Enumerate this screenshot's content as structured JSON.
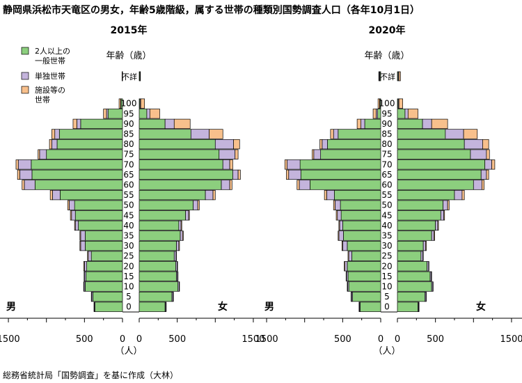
{
  "title": "静岡県浜松市天竜区の男女，年齢5歳階級，属する世帯の種類別国勢調査人口（各年10月1日）",
  "source": "総務省統計局「国勢調査」を基に作成（大林）",
  "legend": [
    {
      "label": "2人以上の\n一般世帯",
      "color": "#8ccf7e"
    },
    {
      "label": "単独世帯",
      "color": "#c4b4dc"
    },
    {
      "label": "施設等の\n世帯",
      "color": "#f8c08c"
    }
  ],
  "chart_data": {
    "type": "bar",
    "layout": "population-pyramid",
    "stacking": "stacked-horizontal",
    "age_axis_label": "年齢（歳）",
    "unit_label": "（人）",
    "male_label": "男",
    "female_label": "女",
    "unknown_label": "不詳",
    "categories": [
      "0",
      "5",
      "10",
      "15",
      "20",
      "25",
      "30",
      "35",
      "40",
      "45",
      "50",
      "55",
      "60",
      "65",
      "70",
      "75",
      "80",
      "85",
      "90",
      "95",
      "100"
    ],
    "age_ticks": [
      "0",
      "5",
      "10",
      "15",
      "20",
      "25",
      "30",
      "35",
      "40",
      "45",
      "50",
      "55",
      "60",
      "65",
      "70",
      "75",
      "80",
      "85",
      "90",
      "95",
      "100"
    ],
    "xlim": [
      0,
      1500
    ],
    "x_ticks": [
      0,
      500,
      1500
    ],
    "series_names": [
      "2人以上の一般世帯",
      "単独世帯",
      "施設等の世帯"
    ],
    "panels": [
      {
        "year_label": "2015年",
        "unknown": {
          "male": [
            5,
            0,
            0
          ],
          "female": [
            10,
            0,
            0
          ]
        },
        "male": {
          "two_plus": [
            360,
            390,
            490,
            480,
            470,
            410,
            490,
            490,
            580,
            620,
            630,
            820,
            1150,
            1190,
            1200,
            1000,
            860,
            830,
            550,
            190,
            20
          ],
          "single": [
            10,
            15,
            15,
            20,
            30,
            40,
            60,
            60,
            40,
            50,
            70,
            100,
            140,
            160,
            170,
            90,
            70,
            60,
            50,
            20,
            5
          ],
          "facility": [
            5,
            5,
            5,
            5,
            10,
            10,
            10,
            10,
            10,
            15,
            20,
            30,
            30,
            30,
            30,
            20,
            30,
            40,
            50,
            40,
            20
          ]
        },
        "female": {
          "two_plus": [
            340,
            430,
            510,
            490,
            480,
            460,
            490,
            540,
            520,
            610,
            710,
            870,
            1080,
            1230,
            1100,
            1050,
            1000,
            680,
            340,
            100,
            10
          ],
          "single": [
            10,
            15,
            15,
            15,
            20,
            25,
            30,
            30,
            30,
            40,
            60,
            100,
            110,
            70,
            90,
            210,
            240,
            240,
            120,
            40,
            10
          ],
          "facility": [
            5,
            5,
            5,
            5,
            5,
            5,
            10,
            10,
            10,
            10,
            20,
            30,
            30,
            30,
            40,
            40,
            80,
            180,
            210,
            130,
            50
          ]
        }
      },
      {
        "year_label": "2020年",
        "unknown": {
          "male": [
            10,
            10,
            5
          ],
          "female": [
            10,
            10,
            20
          ]
        },
        "male": {
          "two_plus": [
            270,
            370,
            420,
            430,
            440,
            380,
            440,
            490,
            500,
            520,
            530,
            610,
            930,
            1050,
            1060,
            790,
            700,
            560,
            210,
            40,
            10
          ],
          "single": [
            10,
            15,
            15,
            20,
            30,
            40,
            60,
            60,
            40,
            50,
            70,
            100,
            140,
            160,
            170,
            90,
            70,
            60,
            50,
            20,
            5
          ],
          "facility": [
            5,
            5,
            5,
            5,
            10,
            10,
            10,
            10,
            10,
            15,
            20,
            30,
            30,
            30,
            30,
            20,
            30,
            40,
            50,
            40,
            20
          ]
        },
        "female": {
          "two_plus": [
            270,
            360,
            450,
            430,
            390,
            310,
            340,
            450,
            500,
            570,
            600,
            750,
            1000,
            1100,
            1150,
            960,
            880,
            630,
            330,
            100,
            10
          ],
          "single": [
            10,
            15,
            15,
            15,
            20,
            25,
            30,
            30,
            30,
            40,
            60,
            100,
            110,
            70,
            90,
            210,
            240,
            240,
            120,
            40,
            10
          ],
          "facility": [
            5,
            5,
            5,
            5,
            5,
            5,
            10,
            10,
            10,
            10,
            20,
            30,
            30,
            30,
            40,
            40,
            80,
            180,
            210,
            130,
            50
          ]
        }
      }
    ]
  }
}
